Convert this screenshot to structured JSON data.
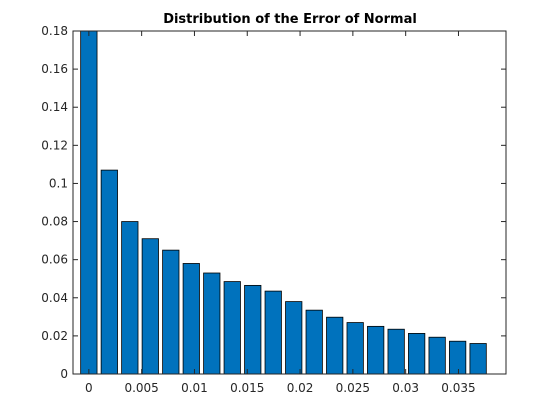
{
  "chart_data": {
    "type": "bar",
    "title": "Distribution of the Error of Normal",
    "xlabel": "",
    "ylabel": "",
    "x": [
      0,
      0.00194,
      0.00388,
      0.00582,
      0.00776,
      0.0097,
      0.01164,
      0.01358,
      0.01552,
      0.01746,
      0.0194,
      0.02134,
      0.02328,
      0.02522,
      0.02716,
      0.0291,
      0.03104,
      0.03298,
      0.03492,
      0.03686
    ],
    "values": [
      0.18,
      0.107,
      0.08,
      0.071,
      0.065,
      0.058,
      0.053,
      0.0485,
      0.0465,
      0.0435,
      0.038,
      0.0335,
      0.0298,
      0.027,
      0.025,
      0.0235,
      0.0213,
      0.0193,
      0.0172,
      0.016
    ],
    "xlim": [
      -0.0015,
      0.0395
    ],
    "ylim": [
      0,
      0.18
    ],
    "xticks": [
      0,
      0.005,
      0.01,
      0.015,
      0.02,
      0.025,
      0.03,
      0.035
    ],
    "xtick_labels": [
      "0",
      "0.005",
      "0.01",
      "0.015",
      "0.02",
      "0.025",
      "0.03",
      "0.035"
    ],
    "yticks": [
      0,
      0.02,
      0.04,
      0.06,
      0.08,
      0.1,
      0.12,
      0.14,
      0.16,
      0.18
    ],
    "ytick_labels": [
      "0",
      "0.02",
      "0.04",
      "0.06",
      "0.08",
      "0.1",
      "0.12",
      "0.14",
      "0.16",
      "0.18"
    ],
    "grid": false,
    "colors": {
      "bar_fill": "#0072BD",
      "bar_edge": "#000000",
      "axis": "#262626"
    }
  }
}
